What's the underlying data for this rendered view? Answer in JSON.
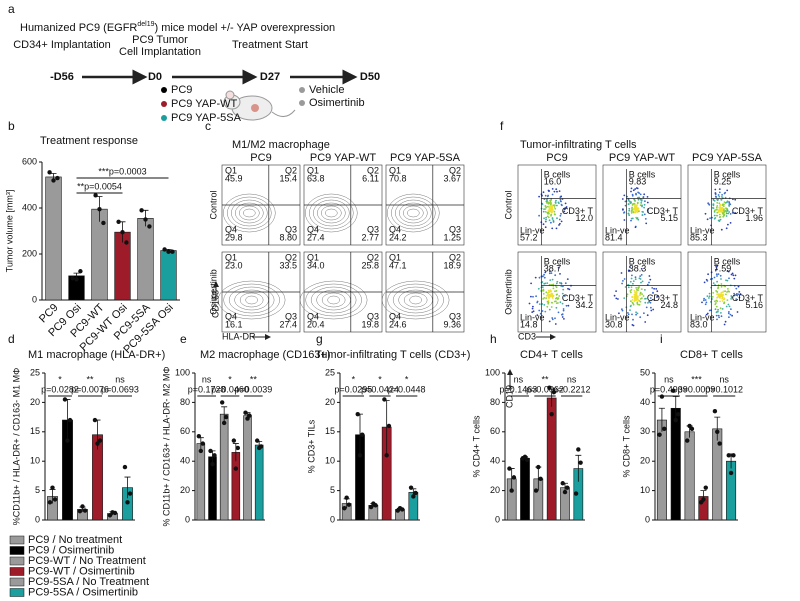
{
  "panel_labels": [
    "a",
    "b",
    "c",
    "d",
    "e",
    "f",
    "g",
    "h",
    "i"
  ],
  "panel_a": {
    "title_pre": "Humanized PC9 (EGFR",
    "title_sup": "del19",
    "title_post": ") mice model +/- YAP overexpression",
    "timeline": [
      {
        "label": [
          "CD34+ Implantation"
        ],
        "day": "-D56"
      },
      {
        "label": [
          "PC9 Tumor",
          "Cell Implantation"
        ],
        "day": "D0"
      },
      {
        "label": [
          "Treatment Start"
        ],
        "day": "D27"
      },
      {
        "day": "D50"
      }
    ],
    "groups": [
      "PC9",
      "PC9 YAP-WT",
      "PC9 YAP-5SA"
    ],
    "group_colors": [
      "#000000",
      "#9e1b2a",
      "#1a9e9e"
    ],
    "treatments": [
      "Vehicle",
      "Osimertinib"
    ],
    "treatment_colors": [
      "#9a9a9a",
      "#9a9a9a"
    ]
  },
  "panel_c": {
    "title": "M1/M2 macrophage",
    "columns": [
      "PC9",
      "PC9 YAP-WT",
      "PC9 YAP-5SA"
    ],
    "rows": [
      "Control",
      "Osimertinib"
    ],
    "y_axis": "CD163",
    "x_axis": "HLA-DR",
    "quadrant_names": [
      "Q1",
      "Q2",
      "Q3",
      "Q4"
    ],
    "plots": [
      [
        [
          "45.9",
          "15.4",
          "8.80",
          "29.8"
        ],
        [
          "63.8",
          "6.11",
          "2.77",
          "27.4"
        ],
        [
          "70.8",
          "3.67",
          "1.25",
          "24.2"
        ]
      ],
      [
        [
          "23.0",
          "33.5",
          "27.4",
          "16.1"
        ],
        [
          "34.0",
          "25.8",
          "19.8",
          "20.4"
        ],
        [
          "47.1",
          "18.9",
          "9.36",
          "24.6"
        ]
      ]
    ]
  },
  "panel_f": {
    "title": "Tumor-infiltrating T cells",
    "columns": [
      "PC9",
      "PC9 YAP-WT",
      "PC9 YAP-5SA"
    ],
    "rows": [
      "Control",
      "Osimertinib"
    ],
    "y_axis": "CD19",
    "x_axis": "CD3",
    "gate_names": [
      "B cells",
      "CD3+ T",
      "Lin-ve"
    ],
    "plots": [
      [
        [
          "16.0",
          "12.0",
          "57.2"
        ],
        [
          "9.83",
          "5.15",
          "81.4"
        ],
        [
          "9.25",
          "1.96",
          "85.3"
        ]
      ],
      [
        [
          "38.7",
          "34.2",
          "14.8"
        ],
        [
          "38.3",
          "24.8",
          "30.8"
        ],
        [
          "7.59",
          "5.16",
          "83.0"
        ]
      ]
    ]
  },
  "legend": {
    "labels": [
      "PC9 / No treatment",
      "PC9 / Osimertinib",
      "PC9-WT / No Treatment",
      "PC9-WT / Osimertinib",
      "PC9-5SA / No Treatment",
      "PC9-5SA / Osimertinib"
    ],
    "colors": [
      "#9a9a9a",
      "#000000",
      "#9a9a9a",
      "#9e1b2a",
      "#9a9a9a",
      "#1a9e9e"
    ]
  },
  "chart_data": [
    {
      "type": "bar",
      "title": "Treatment response",
      "y_label": "Tumor volume [mm³]",
      "categories": [
        "PC9",
        "PC9 Osi",
        "PC9-WT",
        "PC9-WT Osi",
        "PC9-5SA",
        "PC9-5SA Osi"
      ],
      "colors": [
        "#9a9a9a",
        "#000000",
        "#9a9a9a",
        "#9e1b2a",
        "#9a9a9a",
        "#1a9e9e"
      ],
      "values": [
        535,
        105,
        395,
        295,
        355,
        215
      ],
      "errors": [
        15,
        12,
        55,
        45,
        35,
        5
      ],
      "points": [
        [
          555,
          520,
          530
        ],
        [
          95,
          90,
          125
        ],
        [
          455,
          395,
          335
        ],
        [
          340,
          295,
          250
        ],
        [
          390,
          350,
          320
        ],
        [
          220,
          210,
          210
        ]
      ],
      "ylim": [
        0,
        600
      ],
      "yticks": [
        0,
        200,
        400,
        600
      ],
      "comparisons": [
        "**p=0.0054",
        "***p=0.0003"
      ]
    },
    {
      "type": "bar",
      "title": "M1 macrophage (HLA-DR+)",
      "y_label": "%CD11b+ / HLA-DR+ / CD163- M1 MΦ",
      "categories": [
        null,
        null,
        null,
        null,
        null,
        null
      ],
      "colors": [
        "#9a9a9a",
        "#000000",
        "#9a9a9a",
        "#9e1b2a",
        "#9a9a9a",
        "#1a9e9e"
      ],
      "values": [
        4,
        17,
        1.8,
        14.5,
        1.1,
        5.5
      ],
      "errors": [
        1.2,
        3.5,
        0.4,
        2.5,
        0.3,
        1.8
      ],
      "points": [
        [
          3,
          5.5,
          3.5
        ],
        [
          20.5,
          13.5,
          17
        ],
        [
          1.5,
          2.3,
          1.6
        ],
        [
          17,
          13,
          13.5
        ],
        [
          0.8,
          1.3,
          1.2
        ],
        [
          9,
          3,
          4.5
        ]
      ],
      "ylim": [
        0,
        25
      ],
      "yticks": [
        0,
        5,
        10,
        15,
        20,
        25
      ],
      "comparisons": [
        {
          "stars": "*",
          "p": "p=0.0282"
        },
        {
          "stars": "**",
          "p": "p=0.0076"
        },
        {
          "stars": "ns",
          "p": "p=0.0693"
        }
      ]
    },
    {
      "type": "bar",
      "title": "M2 macrophage (CD163+)",
      "y_label": "% CD11b+ / CD163+ / HLA-DR- M2 MΦ",
      "categories": [
        null,
        null,
        null,
        null,
        null,
        null
      ],
      "colors": [
        "#9a9a9a",
        "#000000",
        "#9a9a9a",
        "#9e1b2a",
        "#9a9a9a",
        "#1a9e9e"
      ],
      "values": [
        52,
        43,
        72,
        46,
        71,
        51
      ],
      "errors": [
        4,
        4,
        5,
        6,
        2,
        2.5
      ],
      "points": [
        [
          57,
          47,
          52
        ],
        [
          47,
          38,
          44
        ],
        [
          80,
          66,
          70
        ],
        [
          54,
          35,
          49
        ],
        [
          73,
          69,
          71
        ],
        [
          54,
          49,
          50
        ]
      ],
      "ylim": [
        0,
        100
      ],
      "yticks": [
        0,
        20,
        40,
        60,
        80,
        100
      ],
      "comparisons": [
        {
          "stars": "ns",
          "p": "p=0.1728"
        },
        {
          "stars": "*",
          "p": "p=0.0460"
        },
        {
          "stars": "**",
          "p": "p=0.0039"
        }
      ]
    },
    {
      "type": "bar",
      "title": "Tumor-infiltrating T cells (CD3+)",
      "y_label": "% CD3+ TILs",
      "categories": [
        null,
        null,
        null,
        null,
        null,
        null
      ],
      "colors": [
        "#9a9a9a",
        "#000000",
        "#9a9a9a",
        "#9e1b2a",
        "#9a9a9a",
        "#1a9e9e"
      ],
      "values": [
        2.8,
        14.5,
        2.5,
        15.8,
        1.8,
        4.7
      ],
      "errors": [
        0.8,
        3.5,
        0.3,
        4.5,
        0.2,
        0.6
      ],
      "points": [
        [
          2,
          3.8,
          2.6
        ],
        [
          18,
          11,
          14.5
        ],
        [
          2.2,
          2.8,
          2.5
        ],
        [
          20.5,
          11,
          16
        ],
        [
          1.6,
          2,
          1.8
        ],
        [
          5.5,
          4,
          4.6
        ]
      ],
      "ylim": [
        0,
        25
      ],
      "yticks": [
        0,
        5,
        10,
        15,
        20,
        25
      ],
      "comparisons": [
        {
          "stars": "*",
          "p": "p=0.0295"
        },
        {
          "stars": "*",
          "p": "p=0.0424"
        },
        {
          "stars": "*",
          "p": "p=0.0448"
        }
      ]
    },
    {
      "type": "bar",
      "title": "CD4+ T cells",
      "y_label": "% CD4+ T cells",
      "categories": [
        null,
        null,
        null,
        null,
        null,
        null
      ],
      "colors": [
        "#9a9a9a",
        "#000000",
        "#9a9a9a",
        "#9e1b2a",
        "#9a9a9a",
        "#1a9e9e"
      ],
      "values": [
        28,
        42,
        28,
        83,
        22,
        35
      ],
      "errors": [
        7,
        1,
        8,
        6,
        3,
        9
      ],
      "points": [
        [
          35,
          20,
          29
        ],
        [
          42,
          43,
          41
        ],
        [
          20,
          36,
          28
        ],
        [
          90,
          72,
          87
        ],
        [
          25,
          19,
          22
        ],
        [
          18,
          48,
          39
        ]
      ],
      "ylim": [
        0,
        100
      ],
      "yticks": [
        0,
        20,
        40,
        60,
        80,
        100
      ],
      "comparisons": [
        {
          "stars": "ns",
          "p": "p=0.1463"
        },
        {
          "stars": "**",
          "p": "p=0.0062"
        },
        {
          "stars": "ns",
          "p": "p=0.2212"
        }
      ]
    },
    {
      "type": "bar",
      "title": "CD8+ T cells",
      "y_label": "% CD8+ T cells",
      "categories": [
        null,
        null,
        null,
        null,
        null,
        null
      ],
      "colors": [
        "#9a9a9a",
        "#000000",
        "#9a9a9a",
        "#9e1b2a",
        "#9a9a9a",
        "#1a9e9e"
      ],
      "values": [
        34,
        38,
        30,
        8,
        31,
        20
      ],
      "errors": [
        4,
        4,
        2,
        2,
        4,
        2.5
      ],
      "points": [
        [
          29,
          42,
          31
        ],
        [
          44,
          34,
          36
        ],
        [
          27,
          32,
          31
        ],
        [
          6,
          7,
          11
        ],
        [
          37,
          30,
          26
        ],
        [
          22,
          16,
          22
        ]
      ],
      "ylim": [
        0,
        50
      ],
      "yticks": [
        0,
        10,
        20,
        30,
        40,
        50
      ],
      "comparisons": [
        {
          "stars": "ns",
          "p": "p=0.4939"
        },
        {
          "stars": "***",
          "p": "p=0.0009"
        },
        {
          "stars": "ns",
          "p": "p=0.1012"
        }
      ]
    }
  ]
}
